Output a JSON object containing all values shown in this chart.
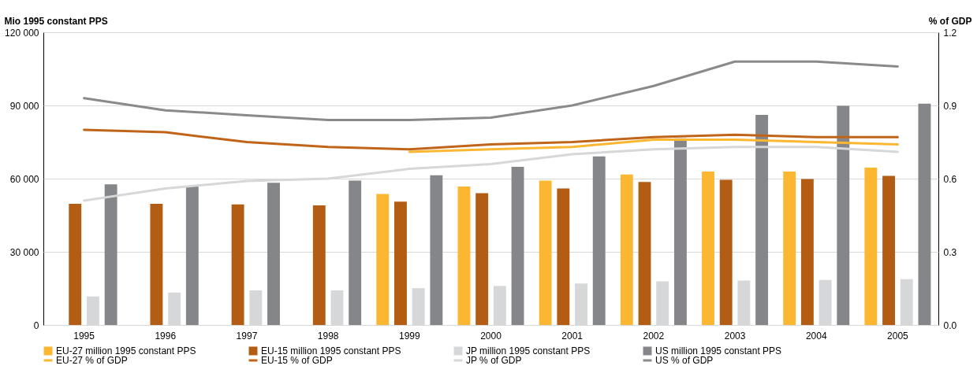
{
  "chart_data": {
    "type": "bar",
    "ylabel": "Mio 1995 constant PPS",
    "y2label": "% of GDP",
    "categories": [
      "1995",
      "1996",
      "1997",
      "1998",
      "1999",
      "2000",
      "2001",
      "2002",
      "2003",
      "2004",
      "2005"
    ],
    "series": [
      {
        "name": "EU-27 million 1995 constant PPS",
        "type": "bar",
        "color": "#fbb731",
        "values": [
          null,
          null,
          null,
          null,
          53700,
          56800,
          59200,
          61700,
          62900,
          62900,
          64500
        ]
      },
      {
        "name": "EU-15 million 1995 constant PPS",
        "type": "bar",
        "color": "#b35c14",
        "values": [
          49700,
          49700,
          49400,
          49000,
          50600,
          54000,
          56000,
          58600,
          59500,
          59800,
          61100
        ]
      },
      {
        "name": "JP million 1995 constant PPS",
        "type": "bar",
        "color": "#d6d7d9",
        "values": [
          11700,
          13300,
          14200,
          14200,
          15100,
          16000,
          17000,
          17900,
          18200,
          18500,
          18800
        ]
      },
      {
        "name": "US million 1995 constant PPS",
        "type": "bar",
        "color": "#858689",
        "values": [
          57700,
          56800,
          58300,
          59200,
          61400,
          64800,
          69100,
          76500,
          86100,
          89800,
          90700
        ]
      },
      {
        "name": "EU-27 % of GDP",
        "type": "line",
        "axis": "y2",
        "color": "#fbb731",
        "values": [
          null,
          null,
          null,
          null,
          0.71,
          0.72,
          0.73,
          0.76,
          0.76,
          0.75,
          0.74
        ]
      },
      {
        "name": "EU-15 % of GDP",
        "type": "line",
        "axis": "y2",
        "color": "#c0641a",
        "values": [
          0.8,
          0.79,
          0.75,
          0.73,
          0.72,
          0.74,
          0.75,
          0.77,
          0.78,
          0.77,
          0.77
        ]
      },
      {
        "name": "JP % of GDP",
        "type": "line",
        "axis": "y2",
        "color": "#d6d7d9",
        "values": [
          0.51,
          0.56,
          0.59,
          0.6,
          0.64,
          0.66,
          0.7,
          0.72,
          0.73,
          0.73,
          0.71
        ]
      },
      {
        "name": "US % of GDP",
        "type": "line",
        "axis": "y2",
        "color": "#8a8a8c",
        "values": [
          0.93,
          0.88,
          0.86,
          0.84,
          0.84,
          0.85,
          0.9,
          0.98,
          1.08,
          1.08,
          1.06
        ]
      }
    ],
    "ylim": [
      0,
      120000
    ],
    "yticks": [
      0,
      {
        "value": 30000,
        "label": "30 000"
      },
      {
        "value": 60000,
        "label": "60 000"
      },
      {
        "value": 90000,
        "label": "90 000"
      },
      {
        "value": 120000,
        "label": "120 000"
      }
    ],
    "y2lim": [
      0,
      1.2
    ],
    "y2ticks": [
      {
        "value": 0,
        "label": "0.0"
      },
      0.3,
      0.6,
      0.9,
      1.2
    ],
    "grid": "y",
    "legend": "bottom"
  }
}
